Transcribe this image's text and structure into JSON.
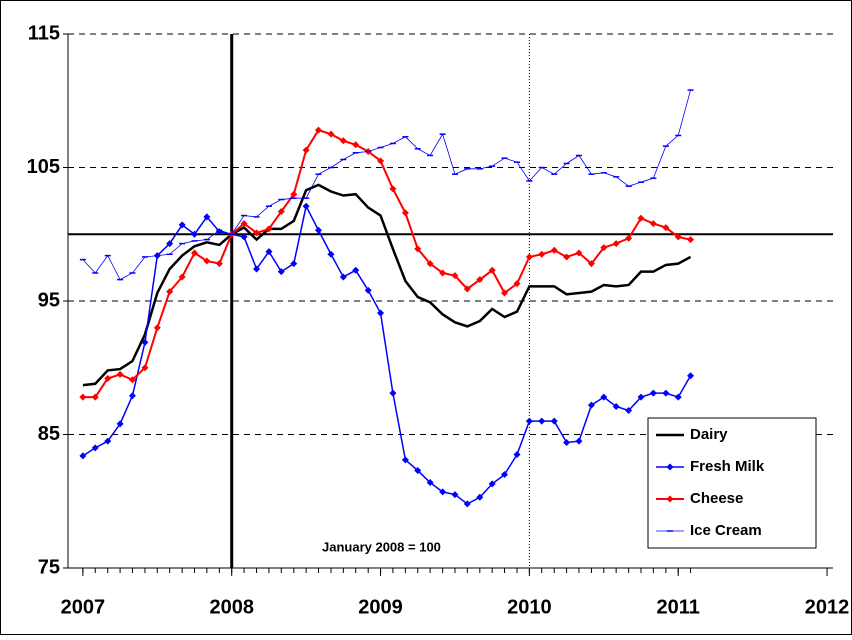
{
  "chart_data": {
    "type": "line",
    "annotation": "January 2008 = 100",
    "x": [
      2007,
      2007.083,
      2007.167,
      2007.25,
      2007.333,
      2007.417,
      2007.5,
      2007.583,
      2007.667,
      2007.75,
      2007.833,
      2007.917,
      2008,
      2008.083,
      2008.167,
      2008.25,
      2008.333,
      2008.417,
      2008.5,
      2008.583,
      2008.667,
      2008.75,
      2008.833,
      2008.917,
      2009,
      2009.083,
      2009.167,
      2009.25,
      2009.333,
      2009.417,
      2009.5,
      2009.583,
      2009.667,
      2009.75,
      2009.833,
      2009.917,
      2010,
      2010.083,
      2010.167,
      2010.25,
      2010.333,
      2010.417,
      2010.5,
      2010.583,
      2010.667,
      2010.75,
      2010.833,
      2010.917,
      2011,
      2011.083
    ],
    "series": [
      {
        "name": "Dairy",
        "color": "#000000",
        "marker": "none",
        "width": 2.5,
        "values": [
          88.7,
          88.8,
          89.8,
          89.9,
          90.5,
          92.5,
          95.6,
          97.4,
          98.4,
          99.1,
          99.4,
          99.2,
          100,
          100.5,
          99.6,
          100.4,
          100.4,
          101,
          103.3,
          103.7,
          103.2,
          102.9,
          103,
          102,
          101.4,
          98.9,
          96.5,
          95.3,
          94.9,
          94,
          93.4,
          93.1,
          93.5,
          94.4,
          93.8,
          94.2,
          96.1,
          96.1,
          96.1,
          95.5,
          95.6,
          95.7,
          96.2,
          96.1,
          96.2,
          97.2,
          97.2,
          97.7,
          97.8,
          98.3
        ]
      },
      {
        "name": "Fresh Milk",
        "color": "#0000ff",
        "marker": "diamond",
        "width": 1.5,
        "values": [
          83.4,
          84,
          84.5,
          85.8,
          87.9,
          91.9,
          98.4,
          99.3,
          100.7,
          100,
          101.3,
          100.2,
          100,
          99.8,
          97.4,
          98.7,
          97.2,
          97.8,
          102.1,
          100.3,
          98.5,
          96.8,
          97.3,
          95.8,
          94.1,
          88.1,
          83.1,
          82.3,
          81.4,
          80.7,
          80.5,
          79.8,
          80.3,
          81.3,
          82,
          83.5,
          86,
          86,
          86,
          84.4,
          84.5,
          87.2,
          87.8,
          87.1,
          86.8,
          87.8,
          88.1,
          88.1,
          87.8,
          89.4
        ]
      },
      {
        "name": "Cheese",
        "color": "#ff0000",
        "marker": "diamond",
        "width": 2,
        "values": [
          87.8,
          87.8,
          89.2,
          89.5,
          89.1,
          90,
          93,
          95.7,
          96.8,
          98.6,
          98,
          97.8,
          100,
          100.8,
          100.1,
          100.4,
          101.7,
          103,
          106.3,
          107.8,
          107.5,
          107,
          106.7,
          106.2,
          105.5,
          103.4,
          101.6,
          98.9,
          97.8,
          97.1,
          96.9,
          95.9,
          96.6,
          97.3,
          95.6,
          96.3,
          98.3,
          98.5,
          98.8,
          98.3,
          98.6,
          97.8,
          99,
          99.3,
          99.7,
          101.2,
          100.8,
          100.5,
          99.8,
          99.6
        ]
      },
      {
        "name": "Ice Cream",
        "color": "#0000ff",
        "marker": "dash",
        "width": 0.8,
        "values": [
          98.1,
          97.1,
          98.4,
          96.6,
          97.1,
          98.3,
          98.4,
          98.5,
          99.3,
          99.5,
          99.6,
          100.3,
          100,
          101.4,
          101.3,
          102.1,
          102.6,
          102.7,
          102.7,
          104.5,
          105,
          105.6,
          106.1,
          106.2,
          106.5,
          106.8,
          107.3,
          106.4,
          105.9,
          107.5,
          104.5,
          104.9,
          104.9,
          105.1,
          105.7,
          105.4,
          104,
          105,
          104.5,
          105.3,
          105.9,
          104.5,
          104.6,
          104.3,
          103.6,
          103.9,
          104.2,
          106.6,
          107.4,
          110.8
        ]
      }
    ],
    "xlim": [
      2006.9,
      2012.04
    ],
    "xticks": [
      2007,
      2008,
      2009,
      2010,
      2011,
      2012
    ],
    "ylim": [
      75,
      115
    ],
    "yticks": [
      75,
      85,
      95,
      105,
      115
    ],
    "grid": true,
    "reference_lines": {
      "hline": 100,
      "vline": 2008,
      "dotted_vline": 2010
    },
    "legend": "lower right"
  }
}
